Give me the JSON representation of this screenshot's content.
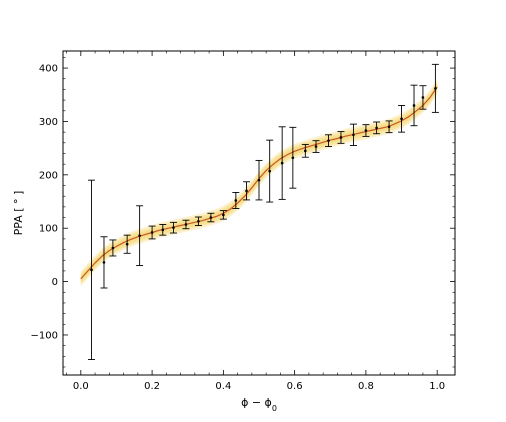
{
  "chart_data": {
    "type": "scatter",
    "xlabel": "ϕ − ϕ",
    "xlabel_subscript": "0",
    "ylabel": "PPA [ ° ]",
    "xlim": [
      -0.05,
      1.05
    ],
    "ylim": [
      -175,
      432
    ],
    "x_ticks": [
      0.0,
      0.2,
      0.4,
      0.6,
      0.8,
      1.0
    ],
    "x_tick_labels": [
      "0.0",
      "0.2",
      "0.4",
      "0.6",
      "0.8",
      "1.0"
    ],
    "y_ticks": [
      -100,
      0,
      100,
      200,
      300,
      400
    ],
    "y_tick_labels": [
      "−100",
      "0",
      "100",
      "200",
      "300",
      "400"
    ],
    "grid": false,
    "colors": {
      "model_line": "#c8552a",
      "band": "#f5d76e",
      "points": "#000000"
    },
    "series": [
      {
        "values": [
          {
            "x": 0.03,
            "y": 22,
            "err": 168
          },
          {
            "x": 0.065,
            "y": 36,
            "err": 48
          },
          {
            "x": 0.09,
            "y": 63,
            "err": 15
          },
          {
            "x": 0.13,
            "y": 70,
            "err": 17
          },
          {
            "x": 0.165,
            "y": 86,
            "err": 56
          },
          {
            "x": 0.2,
            "y": 92,
            "err": 12
          },
          {
            "x": 0.23,
            "y": 97,
            "err": 10
          },
          {
            "x": 0.26,
            "y": 101,
            "err": 10
          },
          {
            "x": 0.295,
            "y": 107,
            "err": 8
          },
          {
            "x": 0.33,
            "y": 113,
            "err": 8
          },
          {
            "x": 0.365,
            "y": 120,
            "err": 8
          },
          {
            "x": 0.4,
            "y": 125,
            "err": 8
          },
          {
            "x": 0.435,
            "y": 152,
            "err": 15
          },
          {
            "x": 0.465,
            "y": 170,
            "err": 17
          },
          {
            "x": 0.5,
            "y": 190,
            "err": 37
          },
          {
            "x": 0.53,
            "y": 207,
            "err": 58
          },
          {
            "x": 0.565,
            "y": 222,
            "err": 68
          },
          {
            "x": 0.595,
            "y": 232,
            "err": 57
          },
          {
            "x": 0.63,
            "y": 245,
            "err": 12
          },
          {
            "x": 0.66,
            "y": 253,
            "err": 11
          },
          {
            "x": 0.695,
            "y": 264,
            "err": 11
          },
          {
            "x": 0.73,
            "y": 270,
            "err": 11
          },
          {
            "x": 0.765,
            "y": 275,
            "err": 20
          },
          {
            "x": 0.8,
            "y": 283,
            "err": 11
          },
          {
            "x": 0.83,
            "y": 288,
            "err": 11
          },
          {
            "x": 0.865,
            "y": 290,
            "err": 11
          },
          {
            "x": 0.9,
            "y": 305,
            "err": 25
          },
          {
            "x": 0.935,
            "y": 330,
            "err": 38
          },
          {
            "x": 0.96,
            "y": 345,
            "err": 22
          },
          {
            "x": 0.995,
            "y": 362,
            "err": 45
          }
        ]
      }
    ],
    "model_curve": {
      "x": [
        0.0,
        0.02,
        0.04,
        0.06,
        0.08,
        0.1,
        0.12,
        0.14,
        0.16,
        0.18,
        0.2,
        0.22,
        0.24,
        0.26,
        0.28,
        0.3,
        0.32,
        0.34,
        0.36,
        0.38,
        0.4,
        0.42,
        0.44,
        0.46,
        0.48,
        0.5,
        0.52,
        0.54,
        0.56,
        0.58,
        0.6,
        0.62,
        0.64,
        0.66,
        0.68,
        0.7,
        0.72,
        0.74,
        0.76,
        0.78,
        0.8,
        0.82,
        0.84,
        0.86,
        0.88,
        0.9,
        0.92,
        0.94,
        0.96,
        0.98,
        1.0
      ],
      "y": [
        5,
        20,
        35,
        48,
        58,
        66,
        73,
        79,
        84,
        88,
        92,
        96,
        99,
        102,
        105,
        108,
        111,
        114,
        118,
        122,
        128,
        136,
        147,
        160,
        176,
        193,
        208,
        220,
        230,
        238,
        244,
        249,
        253,
        257,
        261,
        265,
        268,
        272,
        275,
        278,
        281,
        284,
        287,
        290,
        295,
        301,
        309,
        319,
        330,
        345,
        365
      ]
    },
    "band_half_width": 14
  }
}
